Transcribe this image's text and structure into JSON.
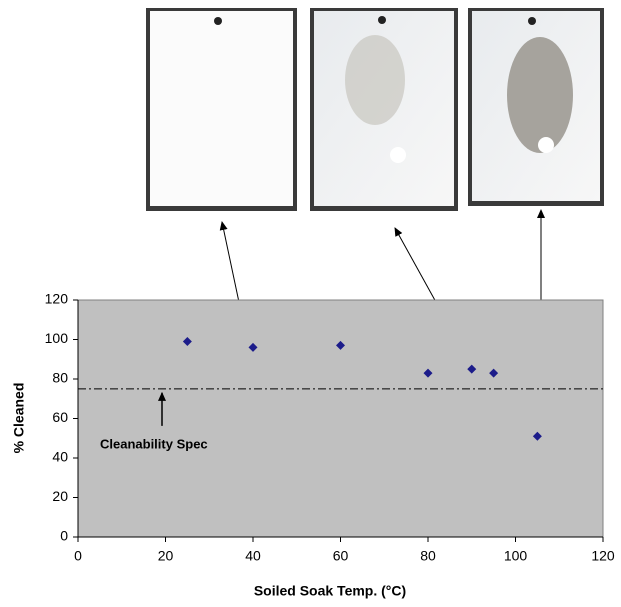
{
  "chart_data": {
    "type": "scatter",
    "x": [
      25,
      40,
      60,
      80,
      90,
      95,
      105
    ],
    "values": [
      99,
      96,
      97,
      83,
      85,
      83,
      51
    ],
    "color": "#1c1c8a",
    "xlabel": "Soiled Soak Temp. (°C)",
    "ylabel": "% Cleaned",
    "xlim": [
      0,
      120
    ],
    "xticks": [
      0,
      20,
      40,
      60,
      80,
      100,
      120
    ],
    "ylim": [
      0,
      120
    ],
    "yticks": [
      0,
      20,
      40,
      60,
      80,
      100,
      120
    ],
    "grid": false,
    "spec_line": 75,
    "spec_label": "Cleanability Spec"
  }
}
